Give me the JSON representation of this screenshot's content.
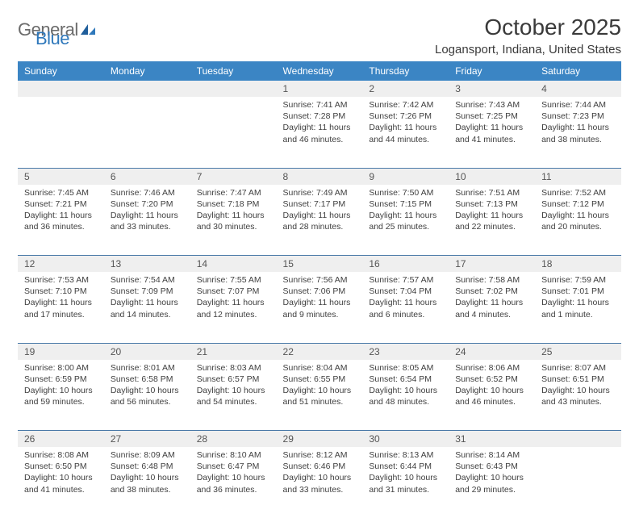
{
  "brand": {
    "text1": "General",
    "text2": "Blue"
  },
  "title": "October 2025",
  "location": "Logansport, Indiana, United States",
  "colors": {
    "header_bg": "#3b85c4",
    "header_text": "#ffffff",
    "daynum_bg": "#efefef",
    "row_divider": "#4a7aa8",
    "brand_gray": "#6b6b6b",
    "brand_blue": "#2f78bb"
  },
  "dayHeaders": [
    "Sunday",
    "Monday",
    "Tuesday",
    "Wednesday",
    "Thursday",
    "Friday",
    "Saturday"
  ],
  "weeks": [
    [
      null,
      null,
      null,
      {
        "n": "1",
        "sr": "7:41 AM",
        "ss": "7:28 PM",
        "dl": "11 hours and 46 minutes."
      },
      {
        "n": "2",
        "sr": "7:42 AM",
        "ss": "7:26 PM",
        "dl": "11 hours and 44 minutes."
      },
      {
        "n": "3",
        "sr": "7:43 AM",
        "ss": "7:25 PM",
        "dl": "11 hours and 41 minutes."
      },
      {
        "n": "4",
        "sr": "7:44 AM",
        "ss": "7:23 PM",
        "dl": "11 hours and 38 minutes."
      }
    ],
    [
      {
        "n": "5",
        "sr": "7:45 AM",
        "ss": "7:21 PM",
        "dl": "11 hours and 36 minutes."
      },
      {
        "n": "6",
        "sr": "7:46 AM",
        "ss": "7:20 PM",
        "dl": "11 hours and 33 minutes."
      },
      {
        "n": "7",
        "sr": "7:47 AM",
        "ss": "7:18 PM",
        "dl": "11 hours and 30 minutes."
      },
      {
        "n": "8",
        "sr": "7:49 AM",
        "ss": "7:17 PM",
        "dl": "11 hours and 28 minutes."
      },
      {
        "n": "9",
        "sr": "7:50 AM",
        "ss": "7:15 PM",
        "dl": "11 hours and 25 minutes."
      },
      {
        "n": "10",
        "sr": "7:51 AM",
        "ss": "7:13 PM",
        "dl": "11 hours and 22 minutes."
      },
      {
        "n": "11",
        "sr": "7:52 AM",
        "ss": "7:12 PM",
        "dl": "11 hours and 20 minutes."
      }
    ],
    [
      {
        "n": "12",
        "sr": "7:53 AM",
        "ss": "7:10 PM",
        "dl": "11 hours and 17 minutes."
      },
      {
        "n": "13",
        "sr": "7:54 AM",
        "ss": "7:09 PM",
        "dl": "11 hours and 14 minutes."
      },
      {
        "n": "14",
        "sr": "7:55 AM",
        "ss": "7:07 PM",
        "dl": "11 hours and 12 minutes."
      },
      {
        "n": "15",
        "sr": "7:56 AM",
        "ss": "7:06 PM",
        "dl": "11 hours and 9 minutes."
      },
      {
        "n": "16",
        "sr": "7:57 AM",
        "ss": "7:04 PM",
        "dl": "11 hours and 6 minutes."
      },
      {
        "n": "17",
        "sr": "7:58 AM",
        "ss": "7:02 PM",
        "dl": "11 hours and 4 minutes."
      },
      {
        "n": "18",
        "sr": "7:59 AM",
        "ss": "7:01 PM",
        "dl": "11 hours and 1 minute."
      }
    ],
    [
      {
        "n": "19",
        "sr": "8:00 AM",
        "ss": "6:59 PM",
        "dl": "10 hours and 59 minutes."
      },
      {
        "n": "20",
        "sr": "8:01 AM",
        "ss": "6:58 PM",
        "dl": "10 hours and 56 minutes."
      },
      {
        "n": "21",
        "sr": "8:03 AM",
        "ss": "6:57 PM",
        "dl": "10 hours and 54 minutes."
      },
      {
        "n": "22",
        "sr": "8:04 AM",
        "ss": "6:55 PM",
        "dl": "10 hours and 51 minutes."
      },
      {
        "n": "23",
        "sr": "8:05 AM",
        "ss": "6:54 PM",
        "dl": "10 hours and 48 minutes."
      },
      {
        "n": "24",
        "sr": "8:06 AM",
        "ss": "6:52 PM",
        "dl": "10 hours and 46 minutes."
      },
      {
        "n": "25",
        "sr": "8:07 AM",
        "ss": "6:51 PM",
        "dl": "10 hours and 43 minutes."
      }
    ],
    [
      {
        "n": "26",
        "sr": "8:08 AM",
        "ss": "6:50 PM",
        "dl": "10 hours and 41 minutes."
      },
      {
        "n": "27",
        "sr": "8:09 AM",
        "ss": "6:48 PM",
        "dl": "10 hours and 38 minutes."
      },
      {
        "n": "28",
        "sr": "8:10 AM",
        "ss": "6:47 PM",
        "dl": "10 hours and 36 minutes."
      },
      {
        "n": "29",
        "sr": "8:12 AM",
        "ss": "6:46 PM",
        "dl": "10 hours and 33 minutes."
      },
      {
        "n": "30",
        "sr": "8:13 AM",
        "ss": "6:44 PM",
        "dl": "10 hours and 31 minutes."
      },
      {
        "n": "31",
        "sr": "8:14 AM",
        "ss": "6:43 PM",
        "dl": "10 hours and 29 minutes."
      },
      null
    ]
  ],
  "labels": {
    "sunrise": "Sunrise:",
    "sunset": "Sunset:",
    "daylight": "Daylight:"
  }
}
